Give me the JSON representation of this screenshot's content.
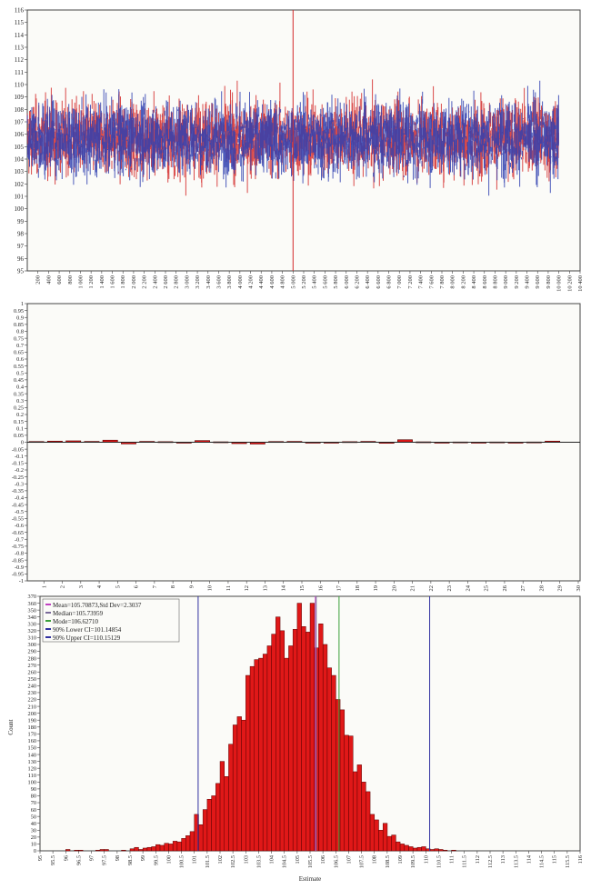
{
  "colors": {
    "series_red": "#d42a2a",
    "series_blue": "#2f3fb0",
    "bar_red": "#e01818",
    "bar_stroke": "#5a0000",
    "panel_bg": "#fbfbf8",
    "mean_line": "#c040c0",
    "median_line": "#7a6a9a",
    "mode_line": "#3aa03a",
    "ci_line": "#3030a0"
  },
  "chart_data": [
    {
      "type": "line",
      "title": "",
      "xlabel": "",
      "ylabel": "",
      "xlim": [
        0,
        10400
      ],
      "ylim": [
        95,
        116
      ],
      "x_ticks": [
        "200",
        "400",
        "600",
        "800",
        "1 000",
        "1 200",
        "1 400",
        "1 600",
        "1 800",
        "2 000",
        "2 200",
        "2 400",
        "2 600",
        "2 800",
        "3 000",
        "3 200",
        "3 400",
        "3 600",
        "3 800",
        "4 000",
        "4 200",
        "4 400",
        "4 600",
        "4 800",
        "5 000",
        "5 200",
        "5 400",
        "5 600",
        "5 800",
        "6 000",
        "6 200",
        "6 400",
        "6 600",
        "6 800",
        "7 000",
        "7 200",
        "7 400",
        "7 600",
        "7 800",
        "8 000",
        "8 200",
        "8 400",
        "8 600",
        "8 800",
        "9 000",
        "9 200",
        "9 400",
        "9 600",
        "9 800",
        "10 000",
        "10 200",
        "10 400"
      ],
      "y_ticks": [
        "95",
        "96",
        "97",
        "98",
        "99",
        "100",
        "101",
        "102",
        "103",
        "104",
        "105",
        "106",
        "107",
        "108",
        "109",
        "110",
        "111",
        "112",
        "113",
        "114",
        "115",
        "116"
      ],
      "series": [
        {
          "color_key": "series_red",
          "n": 10000,
          "center": 105.7,
          "sd": 2.3
        },
        {
          "color_key": "series_blue",
          "n": 10000,
          "center": 105.7,
          "sd": 2.3
        }
      ],
      "spike": {
        "x": 5000,
        "low": 95,
        "high": 116
      }
    },
    {
      "type": "bar",
      "title": "",
      "xlabel": "",
      "ylabel": "",
      "ylim": [
        -1,
        1
      ],
      "y_ticks": [
        "1",
        "0.95",
        "0.9",
        "0.85",
        "0.8",
        "0.75",
        "0.7",
        "0.65",
        "0.6",
        "0.55",
        "0.5",
        "0.45",
        "0.4",
        "0.35",
        "0.3",
        "0.25",
        "0.2",
        "0.15",
        "0.1",
        "0.05",
        "0",
        "-0.05",
        "-0.1",
        "-0.15",
        "-0.2",
        "-0.25",
        "-0.3",
        "-0.35",
        "-0.4",
        "-0.45",
        "-0.5",
        "-0.55",
        "-0.6",
        "-0.65",
        "-0.7",
        "-0.75",
        "-0.8",
        "-0.85",
        "-0.9",
        "-0.95",
        "-1"
      ],
      "categories": [
        "1",
        "2",
        "3",
        "4",
        "5",
        "6",
        "7",
        "8",
        "9",
        "10",
        "11",
        "12",
        "13",
        "14",
        "15",
        "16",
        "17",
        "18",
        "19",
        "20",
        "21",
        "22",
        "23",
        "24",
        "25",
        "26",
        "27",
        "28",
        "29",
        "30"
      ],
      "values": [
        0.005,
        0.008,
        0.01,
        0.006,
        0.015,
        -0.012,
        0.006,
        0.004,
        -0.003,
        0.012,
        0.003,
        -0.01,
        -0.013,
        0.005,
        0.006,
        -0.002,
        -0.002,
        0.004,
        0.006,
        -0.008,
        0.018,
        0.003,
        -0.004,
        0.002,
        -0.002,
        0.002,
        -0.001,
        0.002,
        0.008,
        0
      ]
    },
    {
      "type": "bar",
      "title": "",
      "xlabel": "Estimate",
      "ylabel": "Count",
      "xlim": [
        95,
        116
      ],
      "ylim": [
        0,
        370
      ],
      "bin_width": 0.1667,
      "x_ticks": [
        "95",
        "95.5",
        "96",
        "96.5",
        "97",
        "97.5",
        "98",
        "98.5",
        "99",
        "99.5",
        "100",
        "100.5",
        "101",
        "101.5",
        "102",
        "102.5",
        "103",
        "103.5",
        "104",
        "104.5",
        "105",
        "105.5",
        "106",
        "106.5",
        "107",
        "107.5",
        "108",
        "108.5",
        "109",
        "109.5",
        "110",
        "110.5",
        "111",
        "111.5",
        "112",
        "112.5",
        "113",
        "113.5",
        "114",
        "114.5",
        "115",
        "115.5",
        "116"
      ],
      "y_ticks": [
        "0",
        "10",
        "20",
        "30",
        "40",
        "50",
        "60",
        "70",
        "80",
        "90",
        "100",
        "110",
        "120",
        "130",
        "140",
        "150",
        "160",
        "170",
        "180",
        "190",
        "200",
        "210",
        "220",
        "230",
        "240",
        "250",
        "260",
        "270",
        "280",
        "290",
        "300",
        "310",
        "320",
        "330",
        "340",
        "350",
        "360",
        "370"
      ],
      "values": [
        0,
        0,
        0,
        0,
        0,
        0,
        2,
        0,
        1,
        1,
        0,
        0,
        0,
        1,
        2,
        2,
        0,
        0,
        0,
        1,
        0,
        3,
        5,
        2,
        4,
        5,
        6,
        9,
        8,
        11,
        10,
        14,
        13,
        18,
        22,
        28,
        53,
        38,
        60,
        75,
        80,
        98,
        130,
        108,
        155,
        183,
        195,
        190,
        255,
        268,
        278,
        280,
        286,
        298,
        315,
        340,
        320,
        280,
        298,
        322,
        360,
        326,
        318,
        360,
        295,
        330,
        300,
        266,
        255,
        220,
        205,
        168,
        167,
        115,
        125,
        100,
        86,
        53,
        45,
        30,
        40,
        21,
        23,
        13,
        10,
        8,
        6,
        4,
        5,
        6,
        3,
        2,
        3,
        2,
        1,
        0,
        1,
        0,
        0,
        0,
        0
      ],
      "legend": [
        {
          "label": "Mean=105.70873,Std Dev=2.3037",
          "color_key": "mean_line"
        },
        {
          "label": "Median=105.73959",
          "color_key": "median_line"
        },
        {
          "label": "Mode=106.62710",
          "color_key": "mode_line"
        },
        {
          "label": "90% Lower CI=101.14854",
          "color_key": "ci_line"
        },
        {
          "label": "90% Upper CI=110.15129",
          "color_key": "ci_line"
        }
      ],
      "vlines": [
        {
          "x": 105.70873,
          "color_key": "mean_line"
        },
        {
          "x": 105.73959,
          "color_key": "median_line"
        },
        {
          "x": 106.6271,
          "color_key": "mode_line"
        },
        {
          "x": 101.14854,
          "color_key": "ci_line"
        },
        {
          "x": 110.15129,
          "color_key": "ci_line"
        }
      ]
    }
  ]
}
